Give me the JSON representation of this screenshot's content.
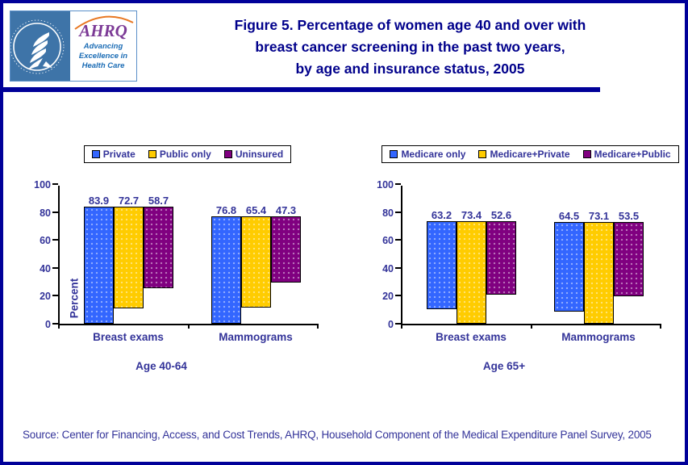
{
  "page": {
    "title_lines": [
      "Figure 5. Percentage of women age 40 and over with",
      "breast cancer screening in the past two years,",
      "by age and insurance status, 2005"
    ],
    "source": "Source: Center for Financing, Access, and Cost Trends, AHRQ, Household Component of the Medical Expenditure Panel Survey, 2005"
  },
  "logo": {
    "ahrq": "AHRQ",
    "tagline_line1": "Advancing",
    "tagline_line2": "Excellence in",
    "tagline_line3": "Health Care"
  },
  "colors": {
    "page_border": "#000099",
    "title_text": "#00008B",
    "chart_text": "#333399",
    "axis": "#000000",
    "series_blue": "#3366FF",
    "series_yellow": "#FFCC00",
    "series_purple": "#800080"
  },
  "chart_data": [
    {
      "type": "bar",
      "group_label": "Age 40-64",
      "ylabel": "Percent",
      "ylim": [
        0,
        100
      ],
      "yticks": [
        0,
        20,
        40,
        60,
        80,
        100
      ],
      "grid": false,
      "legend_position": "top",
      "categories": [
        "Breast exams",
        "Mammograms"
      ],
      "series": [
        {
          "name": "Private",
          "color": "#3366FF",
          "values": [
            83.9,
            76.8
          ]
        },
        {
          "name": "Public only",
          "color": "#FFCC00",
          "values": [
            72.7,
            65.4
          ]
        },
        {
          "name": "Uninsured",
          "color": "#800080",
          "values": [
            58.7,
            47.3
          ]
        }
      ]
    },
    {
      "type": "bar",
      "group_label": "Age 65+",
      "ylabel": "",
      "ylim": [
        0,
        100
      ],
      "yticks": [
        0,
        20,
        40,
        60,
        80,
        100
      ],
      "grid": false,
      "legend_position": "top",
      "categories": [
        "Breast exams",
        "Mammograms"
      ],
      "series": [
        {
          "name": "Medicare only",
          "color": "#3366FF",
          "values": [
            63.2,
            64.5
          ]
        },
        {
          "name": "Medicare+Private",
          "color": "#FFCC00",
          "values": [
            73.4,
            73.1
          ]
        },
        {
          "name": "Medicare+Public",
          "color": "#800080",
          "values": [
            52.6,
            53.5
          ]
        }
      ]
    }
  ]
}
